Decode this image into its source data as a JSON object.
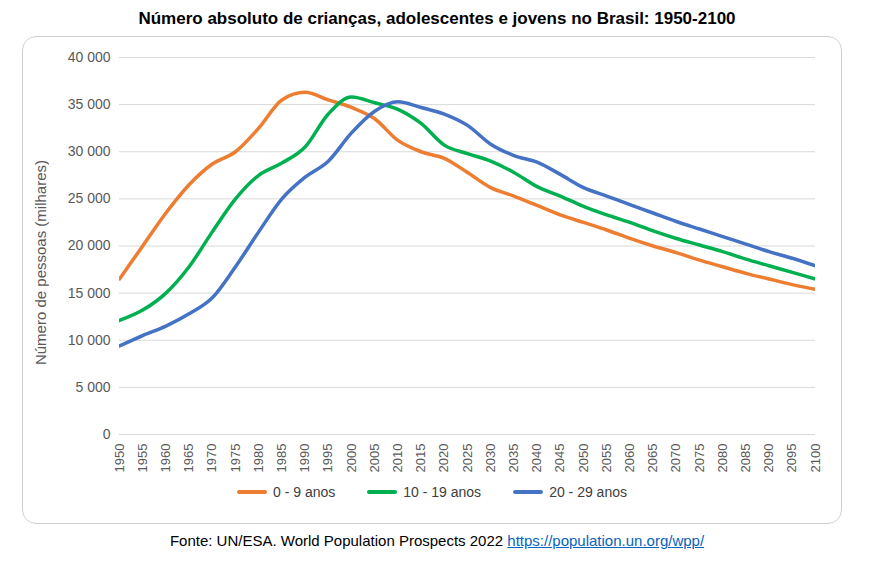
{
  "chart_data": {
    "type": "line",
    "title": "Número absoluto de crianças, adolescentes e jovens no Brasil: 1950-2100",
    "y_label": "Número de pessoas (milhares)",
    "caption": "Fonte: UN/ESA. World Population Prospects 2022",
    "caption_link": "https://population.un.org/wpp/",
    "x": [
      1950,
      1955,
      1960,
      1965,
      1970,
      1975,
      1980,
      1985,
      1990,
      1995,
      2000,
      2005,
      2010,
      2015,
      2020,
      2025,
      2030,
      2035,
      2040,
      2045,
      2050,
      2055,
      2060,
      2065,
      2070,
      2075,
      2080,
      2085,
      2090,
      2095,
      2100
    ],
    "series": [
      {
        "name": "0 - 9 anos",
        "color": "#ED7D31",
        "values": [
          16500,
          20000,
          23500,
          26500,
          28700,
          30000,
          32500,
          35500,
          36300,
          35500,
          34700,
          33500,
          31200,
          30000,
          29300,
          27800,
          26200,
          25300,
          24300,
          23300,
          22500,
          21700,
          20800,
          20000,
          19300,
          18500,
          17800,
          17100,
          16500,
          15900,
          15400
        ]
      },
      {
        "name": "10 - 19 anos",
        "color": "#00B050",
        "values": [
          12100,
          13200,
          15000,
          17800,
          21500,
          25000,
          27500,
          28800,
          30500,
          34000,
          35800,
          35200,
          34500,
          33000,
          30700,
          29800,
          29000,
          27800,
          26300,
          25300,
          24200,
          23300,
          22500,
          21600,
          20800,
          20100,
          19400,
          18600,
          17900,
          17200,
          16500
        ]
      },
      {
        "name": "20 - 29 anos",
        "color": "#4472C4",
        "values": [
          9400,
          10500,
          11500,
          12800,
          14500,
          17800,
          21500,
          25000,
          27300,
          29000,
          32000,
          34300,
          35300,
          34700,
          34000,
          32800,
          30800,
          29600,
          28900,
          27600,
          26200,
          25300,
          24400,
          23500,
          22600,
          21800,
          21000,
          20200,
          19400,
          18700,
          17900
        ]
      }
    ],
    "xlim": [
      1950,
      2100
    ],
    "xticks": [
      1950,
      1955,
      1960,
      1965,
      1970,
      1975,
      1980,
      1985,
      1990,
      1995,
      2000,
      2005,
      2010,
      2015,
      2020,
      2025,
      2030,
      2035,
      2040,
      2045,
      2050,
      2055,
      2060,
      2065,
      2070,
      2075,
      2080,
      2085,
      2090,
      2095,
      2100
    ],
    "ylim": [
      0,
      40000
    ],
    "yticks": [
      0,
      {
        "value": 5000,
        "label": "5 000"
      },
      {
        "value": 10000,
        "label": "10 000"
      },
      {
        "value": 15000,
        "label": "15 000"
      },
      {
        "value": 20000,
        "label": "20 000"
      },
      {
        "value": 25000,
        "label": "25 000"
      },
      {
        "value": 30000,
        "label": "30 000"
      },
      {
        "value": 35000,
        "label": "35 000"
      },
      {
        "value": 40000,
        "label": "40 000"
      }
    ],
    "grid": true,
    "legend": "bottom"
  }
}
